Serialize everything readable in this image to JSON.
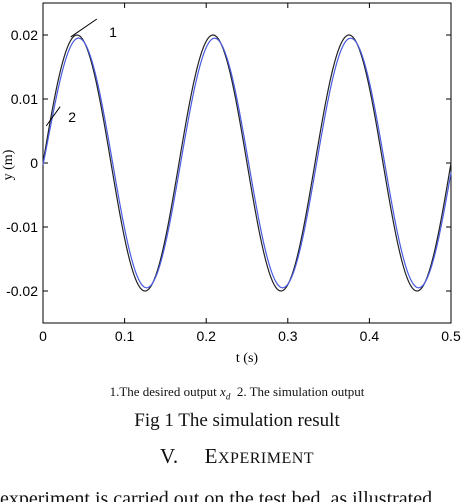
{
  "chart_data": {
    "type": "line",
    "xlabel": "t (s)",
    "ylabel": "y (m)",
    "xlim": [
      0,
      0.5
    ],
    "ylim": [
      -0.025,
      0.025
    ],
    "xticks": [
      "0",
      "0.1",
      "0.2",
      "0.3",
      "0.4",
      "0.5"
    ],
    "yticks": [
      "-0.02",
      "-0.01",
      "0",
      "0.01",
      "0.02"
    ],
    "grid": false,
    "amplitude": 0.02,
    "frequency_hz": 6,
    "series": [
      {
        "name": "1",
        "color": "#222222",
        "kind": "desired_sine",
        "amplitude": 0.02,
        "frequency_hz": 6
      },
      {
        "name": "2",
        "color": "#4a5be0",
        "kind": "simulation_output",
        "amplitude": 0.0195,
        "frequency_hz": 6
      }
    ],
    "annotations": [
      {
        "text": "1",
        "x": 0.045,
        "y": 0.0205
      },
      {
        "text": "2",
        "x": 0.006,
        "y": 0.007
      }
    ]
  },
  "caption": {
    "legend_prefix": "1.The desired output ",
    "legend_var": "x",
    "legend_sub": "d",
    "legend_suffix": "  2. The simulation output",
    "figure": "Fig 1 The simulation result"
  },
  "section": {
    "number": "V.",
    "first_letter": "E",
    "rest": "XPERIMENT"
  },
  "trailing_text": "experiment is carried out on the test bed, as illustrated"
}
